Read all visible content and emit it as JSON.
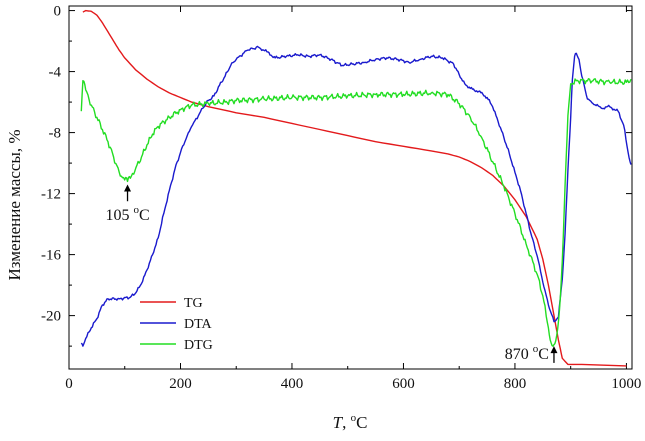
{
  "chart_data": {
    "type": "line",
    "title": "",
    "xlabel_italic": "T",
    "xlabel_rest": ", °C",
    "xlabel_rest_sup": "o",
    "xlabel_unit": "C",
    "ylabel": "Изменение массы, %",
    "xlim": [
      0,
      1010
    ],
    "ylim": [
      -23.5,
      0.3
    ],
    "x_ticks": [
      0,
      200,
      400,
      600,
      800,
      1000
    ],
    "y_ticks": [
      0,
      -4,
      -8,
      -12,
      -16,
      -20
    ],
    "x_tick_labels": [
      "0",
      "200",
      "400",
      "600",
      "800",
      "1000"
    ],
    "y_tick_labels": [
      "0",
      "-4",
      "-8",
      "-12",
      "-16",
      "-20"
    ],
    "grid": false,
    "legend_position": "bottom-left",
    "series": [
      {
        "name": "TG",
        "color": "#e31a1c",
        "points": [
          [
            25,
            -0.1
          ],
          [
            30,
            0.0
          ],
          [
            40,
            -0.05
          ],
          [
            50,
            -0.3
          ],
          [
            60,
            -0.8
          ],
          [
            70,
            -1.4
          ],
          [
            80,
            -2.0
          ],
          [
            90,
            -2.6
          ],
          [
            100,
            -3.1
          ],
          [
            120,
            -3.9
          ],
          [
            140,
            -4.5
          ],
          [
            160,
            -5.0
          ],
          [
            180,
            -5.4
          ],
          [
            200,
            -5.7
          ],
          [
            220,
            -6.0
          ],
          [
            250,
            -6.3
          ],
          [
            300,
            -6.7
          ],
          [
            350,
            -7.0
          ],
          [
            400,
            -7.4
          ],
          [
            450,
            -7.8
          ],
          [
            500,
            -8.2
          ],
          [
            550,
            -8.6
          ],
          [
            600,
            -8.9
          ],
          [
            650,
            -9.2
          ],
          [
            680,
            -9.4
          ],
          [
            700,
            -9.6
          ],
          [
            720,
            -9.9
          ],
          [
            740,
            -10.3
          ],
          [
            760,
            -10.8
          ],
          [
            780,
            -11.5
          ],
          [
            800,
            -12.4
          ],
          [
            820,
            -13.5
          ],
          [
            840,
            -15.0
          ],
          [
            850,
            -16.3
          ],
          [
            860,
            -18.0
          ],
          [
            870,
            -20.0
          ],
          [
            878,
            -21.6
          ],
          [
            885,
            -22.8
          ],
          [
            895,
            -23.2
          ],
          [
            920,
            -23.2
          ],
          [
            1000,
            -23.3
          ]
        ]
      },
      {
        "name": "DTA",
        "color": "#1a1acd",
        "points": [
          [
            22,
            -21.8
          ],
          [
            25,
            -22.0
          ],
          [
            30,
            -21.5
          ],
          [
            40,
            -20.8
          ],
          [
            50,
            -20.2
          ],
          [
            60,
            -19.3
          ],
          [
            70,
            -18.9
          ],
          [
            90,
            -18.9
          ],
          [
            110,
            -18.8
          ],
          [
            120,
            -18.5
          ],
          [
            130,
            -17.9
          ],
          [
            140,
            -17.0
          ],
          [
            150,
            -16.0
          ],
          [
            160,
            -14.9
          ],
          [
            170,
            -13.3
          ],
          [
            180,
            -11.8
          ],
          [
            190,
            -10.4
          ],
          [
            200,
            -9.3
          ],
          [
            210,
            -8.4
          ],
          [
            220,
            -7.6
          ],
          [
            240,
            -6.4
          ],
          [
            250,
            -5.9
          ],
          [
            260,
            -5.6
          ],
          [
            270,
            -4.9
          ],
          [
            280,
            -4.3
          ],
          [
            290,
            -3.6
          ],
          [
            300,
            -3.2
          ],
          [
            320,
            -2.6
          ],
          [
            330,
            -2.5
          ],
          [
            340,
            -2.4
          ],
          [
            355,
            -2.7
          ],
          [
            370,
            -3.1
          ],
          [
            390,
            -3.0
          ],
          [
            410,
            -2.9
          ],
          [
            430,
            -3.0
          ],
          [
            450,
            -2.9
          ],
          [
            470,
            -3.2
          ],
          [
            490,
            -3.6
          ],
          [
            510,
            -3.5
          ],
          [
            530,
            -3.4
          ],
          [
            550,
            -3.2
          ],
          [
            570,
            -3.1
          ],
          [
            590,
            -3.2
          ],
          [
            610,
            -3.4
          ],
          [
            630,
            -3.2
          ],
          [
            650,
            -3.0
          ],
          [
            670,
            -3.1
          ],
          [
            690,
            -3.5
          ],
          [
            700,
            -4.2
          ],
          [
            710,
            -4.8
          ],
          [
            720,
            -5.1
          ],
          [
            735,
            -5.3
          ],
          [
            750,
            -5.7
          ],
          [
            760,
            -6.3
          ],
          [
            770,
            -7.3
          ],
          [
            780,
            -8.3
          ],
          [
            790,
            -9.4
          ],
          [
            800,
            -10.6
          ],
          [
            810,
            -11.8
          ],
          [
            820,
            -13.3
          ],
          [
            830,
            -14.8
          ],
          [
            840,
            -16.1
          ],
          [
            850,
            -17.8
          ],
          [
            860,
            -19.3
          ],
          [
            870,
            -20.4
          ],
          [
            878,
            -20.1
          ],
          [
            885,
            -17.6
          ],
          [
            890,
            -14.6
          ],
          [
            895,
            -10.5
          ],
          [
            900,
            -7.0
          ],
          [
            903,
            -4.5
          ],
          [
            907,
            -3.0
          ],
          [
            910,
            -2.8
          ],
          [
            915,
            -3.2
          ],
          [
            920,
            -4.3
          ],
          [
            930,
            -5.8
          ],
          [
            940,
            -6.1
          ],
          [
            955,
            -6.4
          ],
          [
            970,
            -6.3
          ],
          [
            985,
            -6.6
          ],
          [
            995,
            -7.5
          ],
          [
            1003,
            -9.3
          ],
          [
            1008,
            -10.1
          ]
        ]
      },
      {
        "name": "DTG",
        "color": "#22dd22",
        "points": [
          [
            22,
            -6.6
          ],
          [
            25,
            -4.6
          ],
          [
            30,
            -5.2
          ],
          [
            40,
            -6.2
          ],
          [
            50,
            -7.0
          ],
          [
            60,
            -7.8
          ],
          [
            70,
            -8.6
          ],
          [
            80,
            -9.6
          ],
          [
            90,
            -10.6
          ],
          [
            100,
            -11.1
          ],
          [
            105,
            -11.2
          ],
          [
            110,
            -11.0
          ],
          [
            120,
            -10.3
          ],
          [
            130,
            -9.6
          ],
          [
            140,
            -8.8
          ],
          [
            150,
            -8.1
          ],
          [
            160,
            -7.6
          ],
          [
            180,
            -7.0
          ],
          [
            200,
            -6.5
          ],
          [
            220,
            -6.2
          ],
          [
            250,
            -6.1
          ],
          [
            280,
            -6.0
          ],
          [
            300,
            -5.9
          ],
          [
            350,
            -5.8
          ],
          [
            400,
            -5.7
          ],
          [
            450,
            -5.7
          ],
          [
            500,
            -5.6
          ],
          [
            550,
            -5.5
          ],
          [
            600,
            -5.5
          ],
          [
            650,
            -5.4
          ],
          [
            680,
            -5.5
          ],
          [
            700,
            -6.1
          ],
          [
            720,
            -7.0
          ],
          [
            740,
            -8.3
          ],
          [
            760,
            -9.9
          ],
          [
            780,
            -11.5
          ],
          [
            800,
            -13.3
          ],
          [
            820,
            -15.3
          ],
          [
            840,
            -17.3
          ],
          [
            850,
            -18.7
          ],
          [
            860,
            -20.8
          ],
          [
            865,
            -21.8
          ],
          [
            870,
            -21.9
          ],
          [
            875,
            -21.3
          ],
          [
            880,
            -19.6
          ],
          [
            885,
            -16.4
          ],
          [
            890,
            -11.4
          ],
          [
            895,
            -6.9
          ],
          [
            900,
            -4.8
          ],
          [
            910,
            -4.6
          ],
          [
            940,
            -4.6
          ],
          [
            970,
            -4.7
          ],
          [
            1000,
            -4.7
          ],
          [
            1008,
            -4.5
          ]
        ]
      }
    ],
    "annotations": [
      {
        "name": "dtg-min-annotation",
        "value": "105",
        "sup": "o",
        "unit": "C",
        "arrow_x": 105,
        "arrow_from_y": -12.5,
        "arrow_to_y": -11.4
      },
      {
        "name": "dta-min-annotation",
        "value": "870",
        "sup": "o",
        "unit": "C",
        "arrow_x": 870,
        "arrow_from_y": -23.1,
        "arrow_to_y": -22.0
      }
    ]
  }
}
